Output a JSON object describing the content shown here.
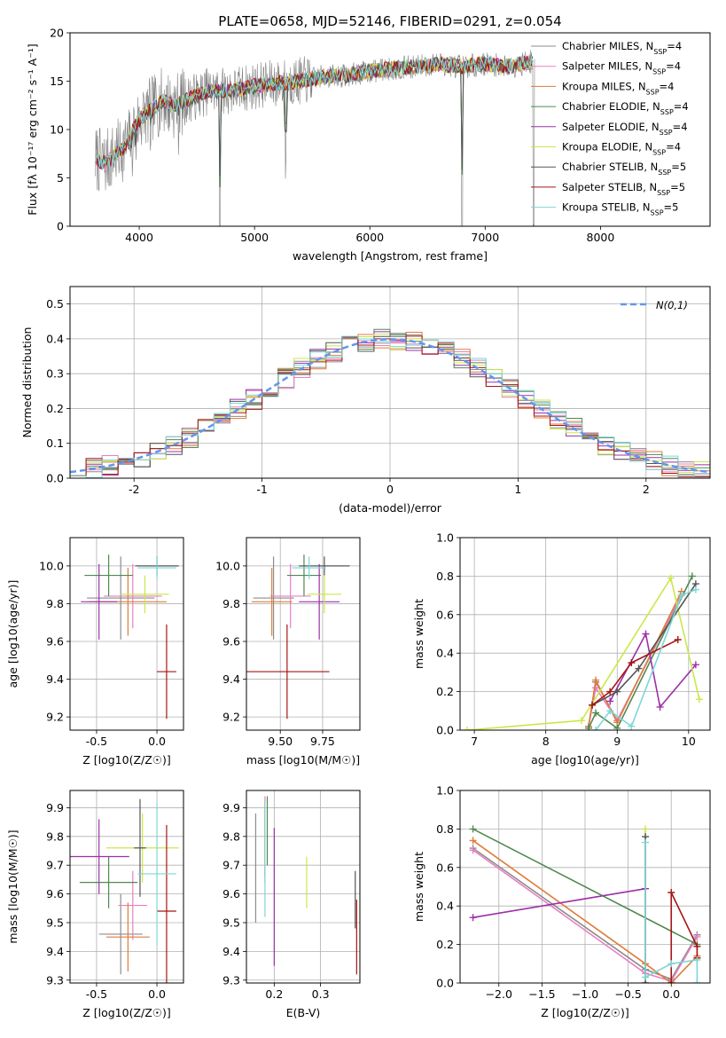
{
  "figure_title": "PLATE=0658, MJD=52146, FIBERID=0291, z=0.054",
  "colors": {
    "chabrier_miles": "#8c8c8c",
    "salpeter_miles": "#e87fc4",
    "kroupa_miles": "#e07b39",
    "chabrier_elodie": "#4f8a50",
    "salpeter_elodie": "#9b30a8",
    "kroupa_elodie": "#c9e84a",
    "chabrier_stelib": "#555555",
    "salpeter_stelib": "#a51515",
    "kroupa_stelib": "#7ed6d6",
    "gauss": "#6495ed",
    "blue": "#5b8fd9"
  },
  "chart_data": [
    {
      "type": "line",
      "title": "PLATE=0658, MJD=52146, FIBERID=0291, z=0.054",
      "xlabel": "wavelength [Angstrom, rest frame]",
      "ylabel": "Flux [fλ 10⁻¹⁷ erg cm⁻² s⁻¹ A⁻¹]",
      "xlim": [
        3400,
        8950
      ],
      "ylim": [
        0,
        20
      ],
      "xticks": [
        4000,
        5000,
        6000,
        7000,
        8000
      ],
      "yticks": [
        0,
        5,
        10,
        15,
        20
      ],
      "legend_position": "top-right",
      "x": [
        3620,
        3700,
        3800,
        3900,
        3950,
        4000,
        4100,
        4200,
        4300,
        4400,
        4500,
        4600,
        4800,
        5000,
        5200,
        5400,
        5600,
        5800,
        6000,
        6200,
        6400,
        6600,
        6800,
        7000,
        7200,
        7400,
        7500
      ],
      "y": [
        7,
        6.5,
        7.5,
        8.5,
        10,
        11,
        12,
        13,
        12.5,
        13,
        13.5,
        14,
        14,
        14.5,
        14.8,
        15,
        15.5,
        15.6,
        16,
        16.3,
        16.5,
        16.8,
        16.5,
        16.8,
        16.5,
        17,
        17
      ],
      "series": [
        {
          "name": "Chabrier MILES, N$_{SSP}$=4",
          "legend": "Chabrier MILES, N",
          "n": "=4"
        },
        {
          "name": "Salpeter MILES, N$_{SSP}$=4",
          "legend": "Salpeter MILES, N",
          "n": "=4"
        },
        {
          "name": "Kroupa MILES, N$_{SSP}$=4",
          "legend": "Kroupa MILES, N",
          "n": "=4"
        },
        {
          "name": "Chabrier ELODIE, N$_{SSP}$=4",
          "legend": "Chabrier ELODIE, N",
          "n": "=4"
        },
        {
          "name": "Salpeter ELODIE, N$_{SSP}$=4",
          "legend": "Salpeter ELODIE, N",
          "n": "=4"
        },
        {
          "name": "Kroupa ELODIE, N$_{SSP}$=4",
          "legend": "Kroupa ELODIE, N",
          "n": "=4"
        },
        {
          "name": "Chabrier STELIB, N$_{SSP}$=5",
          "legend": "Chabrier STELIB, N",
          "n": "=5"
        },
        {
          "name": "Salpeter STELIB, N$_{SSP}$=5",
          "legend": "Salpeter STELIB, N",
          "n": "=5"
        },
        {
          "name": "Kroupa STELIB, N$_{SSP}$=5",
          "legend": "Kroupa STELIB, N",
          "n": "=5"
        }
      ]
    },
    {
      "type": "line",
      "xlabel": "(data-model)/error",
      "ylabel": "Normed distribution",
      "xlim": [
        -2.5,
        2.5
      ],
      "ylim": [
        0,
        0.55
      ],
      "xticks": [
        -2,
        -1,
        0,
        1,
        2
      ],
      "yticks": [
        0.0,
        0.1,
        0.2,
        0.3,
        0.4,
        0.5
      ],
      "legend_position": "top-right",
      "gauss_label": "N(0,1)",
      "histogram_bin_width": 0.125,
      "histogram_x_range": [
        -2.5,
        2.5
      ]
    },
    {
      "type": "scatter",
      "xlabel": "Z [log10(Z/Z☉)]",
      "ylabel": "age  [log10(age/yr)]",
      "xlim": [
        -0.72,
        0.22
      ],
      "ylim": [
        9.13,
        10.15
      ],
      "xticks": [
        -0.5,
        0.0
      ],
      "yticks": [
        9.2,
        9.4,
        9.6,
        9.8,
        10.0
      ],
      "points": [
        {
          "x": -0.3,
          "y": 9.83,
          "xerr": 0.28,
          "yerr": 0.22
        },
        {
          "x": -0.2,
          "y": 9.84,
          "xerr": 0.24,
          "yerr": 0.17
        },
        {
          "x": -0.24,
          "y": 9.81,
          "xerr": 0.32,
          "yerr": 0.18
        },
        {
          "x": -0.4,
          "y": 9.95,
          "xerr": 0.2,
          "yerr": 0.11
        },
        {
          "x": -0.48,
          "y": 9.81,
          "xerr": 0.15,
          "yerr": 0.2
        },
        {
          "x": -0.1,
          "y": 9.85,
          "xerr": 0.2,
          "yerr": 0.1
        },
        {
          "x": 0.0,
          "y": 10.0,
          "xerr": 0.18,
          "yerr": 0.05
        },
        {
          "x": 0.08,
          "y": 9.44,
          "xerr": 0.08,
          "yerr": 0.25
        },
        {
          "x": 0.0,
          "y": 9.99,
          "xerr": 0.16,
          "yerr": 0.06
        }
      ]
    },
    {
      "type": "scatter",
      "xlabel": "mass [log10(M/M☉)]",
      "ylabel": "",
      "xlim": [
        9.3,
        9.97
      ],
      "ylim": [
        9.13,
        10.15
      ],
      "xticks": [
        9.5,
        9.75
      ],
      "yticks": [
        9.2,
        9.4,
        9.6,
        9.8,
        10.0
      ],
      "points": [
        {
          "x": 9.46,
          "y": 9.83,
          "xerr": 0.12,
          "yerr": 0.22
        },
        {
          "x": 9.56,
          "y": 9.84,
          "xerr": 0.12,
          "yerr": 0.17
        },
        {
          "x": 9.45,
          "y": 9.81,
          "xerr": 0.12,
          "yerr": 0.18
        },
        {
          "x": 9.64,
          "y": 9.95,
          "xerr": 0.1,
          "yerr": 0.11
        },
        {
          "x": 9.73,
          "y": 9.81,
          "xerr": 0.12,
          "yerr": 0.2
        },
        {
          "x": 9.76,
          "y": 9.85,
          "xerr": 0.1,
          "yerr": 0.1
        },
        {
          "x": 9.76,
          "y": 10.0,
          "xerr": 0.15,
          "yerr": 0.05
        },
        {
          "x": 9.54,
          "y": 9.44,
          "xerr": 0.25,
          "yerr": 0.25
        },
        {
          "x": 9.67,
          "y": 9.99,
          "xerr": 0.1,
          "yerr": 0.06
        }
      ]
    },
    {
      "type": "line",
      "xlabel": "age  [log10(age/yr)]",
      "ylabel": "mass weight",
      "xlim": [
        6.8,
        10.3
      ],
      "ylim": [
        0,
        1.0
      ],
      "xticks": [
        7,
        8,
        9,
        10
      ],
      "yticks": [
        0.0,
        0.2,
        0.4,
        0.6,
        0.8,
        1.0
      ],
      "series": [
        {
          "x": [
            8.6,
            8.7,
            9.0,
            9.9
          ],
          "y": [
            0.02,
            0.25,
            0.05,
            0.7
          ]
        },
        {
          "x": [
            8.6,
            8.7,
            9.0,
            9.9
          ],
          "y": [
            0.02,
            0.22,
            0.05,
            0.7
          ]
        },
        {
          "x": [
            8.6,
            8.7,
            9.0,
            9.9
          ],
          "y": [
            0.02,
            0.26,
            0.04,
            0.72
          ]
        },
        {
          "x": [
            8.6,
            8.7,
            9.0,
            10.05
          ],
          "y": [
            0.01,
            0.09,
            0.01,
            0.8
          ]
        },
        {
          "x": [
            8.9,
            9.4,
            9.6,
            10.1
          ],
          "y": [
            0.15,
            0.5,
            0.12,
            0.34
          ]
        },
        {
          "x": [
            6.9,
            8.5,
            9.75,
            10.15
          ],
          "y": [
            0.0,
            0.05,
            0.79,
            0.16
          ]
        },
        {
          "x": [
            8.65,
            9.0,
            9.3,
            10.1
          ],
          "y": [
            0.13,
            0.2,
            0.32,
            0.76
          ]
        },
        {
          "x": [
            8.65,
            8.9,
            9.2,
            9.85
          ],
          "y": [
            0.13,
            0.2,
            0.35,
            0.47
          ]
        },
        {
          "x": [
            8.7,
            8.9,
            9.2,
            9.9,
            10.1
          ],
          "y": [
            0.0,
            0.1,
            0.02,
            0.7,
            0.73
          ]
        }
      ]
    },
    {
      "type": "scatter",
      "xlabel": "Z [log10(Z/Z☉)]",
      "ylabel": "mass [log10(M/M☉)]",
      "xlim": [
        -0.72,
        0.22
      ],
      "ylim": [
        9.29,
        9.96
      ],
      "xticks": [
        -0.5,
        0.0
      ],
      "yticks": [
        9.3,
        9.4,
        9.5,
        9.6,
        9.7,
        9.8,
        9.9
      ],
      "points": [
        {
          "x": -0.3,
          "y": 9.46,
          "xerr": 0.18,
          "yerr": 0.14
        },
        {
          "x": -0.2,
          "y": 9.56,
          "xerr": 0.12,
          "yerr": 0.12
        },
        {
          "x": -0.24,
          "y": 9.45,
          "xerr": 0.18,
          "yerr": 0.12
        },
        {
          "x": -0.4,
          "y": 9.64,
          "xerr": 0.24,
          "yerr": 0.09
        },
        {
          "x": -0.48,
          "y": 9.73,
          "xerr": 0.25,
          "yerr": 0.13
        },
        {
          "x": -0.12,
          "y": 9.76,
          "xerr": 0.3,
          "yerr": 0.12
        },
        {
          "x": -0.14,
          "y": 9.76,
          "xerr": 0.05,
          "yerr": 0.17
        },
        {
          "x": 0.08,
          "y": 9.54,
          "xerr": 0.08,
          "yerr": 0.3
        },
        {
          "x": 0.0,
          "y": 9.67,
          "xerr": 0.16,
          "yerr": 0.25
        }
      ]
    },
    {
      "type": "scatter",
      "xlabel": "E(B-V)",
      "ylabel": "",
      "xlim": [
        0.14,
        0.385
      ],
      "ylim": [
        9.29,
        9.96
      ],
      "xticks": [
        0.2,
        0.3
      ],
      "yticks": [
        9.3,
        9.4,
        9.5,
        9.6,
        9.7,
        9.8,
        9.9
      ],
      "points": [
        {
          "x": 0.16,
          "y": 9.69,
          "yerr": 0.19
        },
        {
          "x": 0.18,
          "y": 9.79,
          "yerr": 0.15
        },
        {
          "x": 0.18,
          "y": 9.79,
          "yerr": 0.13
        },
        {
          "x": 0.185,
          "y": 9.82,
          "yerr": 0.12
        },
        {
          "x": 0.2,
          "y": 9.59,
          "yerr": 0.24
        },
        {
          "x": 0.27,
          "y": 9.64,
          "yerr": 0.09
        },
        {
          "x": 0.375,
          "y": 9.58,
          "yerr": 0.1
        },
        {
          "x": 0.378,
          "y": 9.45,
          "yerr": 0.13
        },
        {
          "x": 0.18,
          "y": 9.72,
          "yerr": 0.2
        }
      ]
    },
    {
      "type": "line",
      "xlabel": "Z [log10(Z/Z☉)]",
      "ylabel": "mass weight",
      "xlim": [
        -2.45,
        0.45
      ],
      "ylim": [
        0,
        1.0
      ],
      "xticks": [
        -2.0,
        -1.5,
        -1.0,
        -0.5,
        0.0
      ],
      "yticks": [
        0.0,
        0.2,
        0.4,
        0.6,
        0.8,
        1.0
      ],
      "series": [
        {
          "x": [
            -2.3,
            -0.3,
            0.0,
            0.3
          ],
          "y": [
            0.7,
            0.07,
            0.02,
            0.25
          ]
        },
        {
          "x": [
            -2.3,
            -0.3,
            0.0,
            0.3
          ],
          "y": [
            0.69,
            0.05,
            0.01,
            0.24
          ]
        },
        {
          "x": [
            -2.3,
            -0.3,
            0.0,
            0.3
          ],
          "y": [
            0.74,
            0.1,
            0.0,
            0.14
          ]
        },
        {
          "x": [
            -2.3,
            0.3
          ],
          "y": [
            0.8,
            0.2
          ]
        },
        {
          "x": [
            -2.3,
            -0.3
          ],
          "y": [
            0.34,
            0.49
          ]
        },
        {
          "x": [
            -0.3,
            -0.3
          ],
          "y": [
            0.0,
            0.8
          ]
        },
        {
          "x": [
            -0.3,
            -0.3
          ],
          "y": [
            0.0,
            0.76
          ]
        },
        {
          "x": [
            0.0,
            0.0,
            0.3,
            0.3
          ],
          "y": [
            0.0,
            0.47,
            0.19,
            0.13
          ]
        },
        {
          "x": [
            -0.3,
            -0.3,
            0.0,
            0.3,
            0.3
          ],
          "y": [
            0.73,
            0.03,
            0.1,
            0.12,
            0.0
          ]
        }
      ]
    }
  ]
}
